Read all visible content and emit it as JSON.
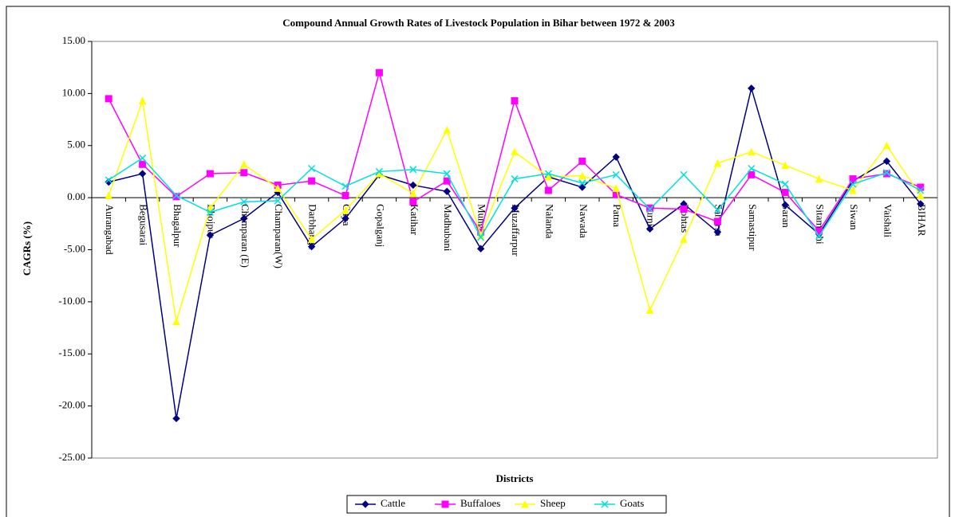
{
  "chart_data": {
    "type": "line",
    "title": "Compound Annual Growth Rates of Livestock Population in Bihar between 1972 & 2003",
    "x_label": "Districts",
    "y_label": "CAGRs (%)",
    "categories": [
      "Aurangabad",
      "Begusarai",
      "Bhagalpur",
      "Bhojpur",
      "Champaran (E)",
      "Champaran(W)",
      "Darbhanga",
      "Gaya",
      "Gopalganj",
      "Katihar",
      "Madhubani",
      "Munger",
      "Muzaffarpur",
      "Nalanda",
      "Nawada",
      "Patna",
      "Purnia",
      "Rohtas",
      "Saharsa",
      "Samastipur",
      "Saran",
      "Sitamarhi",
      "Siwan",
      "Vaishali",
      "BIHAR"
    ],
    "series": [
      {
        "name": "Cattle",
        "color": "#000080",
        "marker": "diamond",
        "values": [
          1.5,
          2.3,
          -21.2,
          -3.6,
          -2.0,
          0.5,
          -4.7,
          -2.0,
          2.2,
          1.2,
          0.6,
          -4.9,
          -1.0,
          2.0,
          1.0,
          3.9,
          -3.0,
          -0.6,
          -3.3,
          10.5,
          -0.7,
          -3.5,
          1.6,
          3.5,
          -0.6
        ]
      },
      {
        "name": "Buffaloes",
        "color": "#ff00ff",
        "marker": "square",
        "values": [
          9.5,
          3.2,
          0.1,
          2.3,
          2.4,
          1.2,
          1.6,
          0.2,
          12.0,
          -0.4,
          1.6,
          -3.3,
          9.3,
          0.7,
          3.5,
          0.3,
          -1.0,
          -1.1,
          -2.3,
          2.2,
          0.5,
          -3.2,
          1.8,
          2.3,
          1.0
        ]
      },
      {
        "name": "Sheep",
        "color": "#ffff00",
        "marker": "triangle",
        "values": [
          0.2,
          9.3,
          -11.9,
          -1.0,
          3.2,
          0.9,
          -4.0,
          -1.2,
          2.3,
          0.4,
          6.5,
          -3.6,
          4.4,
          2.0,
          2.1,
          0.9,
          -10.8,
          -4.0,
          3.3,
          4.4,
          3.1,
          1.8,
          0.7,
          5.0,
          0.2
        ]
      },
      {
        "name": "Goats",
        "color": "#00e0e0",
        "marker": "x",
        "values": [
          1.7,
          3.8,
          0.2,
          -1.4,
          -0.4,
          -0.3,
          2.8,
          1.1,
          2.5,
          2.7,
          2.3,
          -3.8,
          1.8,
          2.3,
          1.4,
          2.2,
          -1.1,
          2.2,
          -1.2,
          2.8,
          1.3,
          -3.7,
          1.3,
          2.4,
          0.7
        ]
      }
    ],
    "ylim": [
      -25,
      15
    ],
    "yticks": [
      {
        "value": -25,
        "label": "-25.00"
      },
      {
        "value": -20,
        "label": "-20.00"
      },
      {
        "value": -15,
        "label": "-15.00"
      },
      {
        "value": -10,
        "label": "-10.00"
      },
      {
        "value": -5,
        "label": "-5.00"
      },
      {
        "value": 0,
        "label": "0.00"
      },
      {
        "value": 5,
        "label": "5.00"
      },
      {
        "value": 10,
        "label": "10.00"
      },
      {
        "value": 15,
        "label": "15.00"
      }
    ],
    "legend": "bottom",
    "grid": false
  }
}
